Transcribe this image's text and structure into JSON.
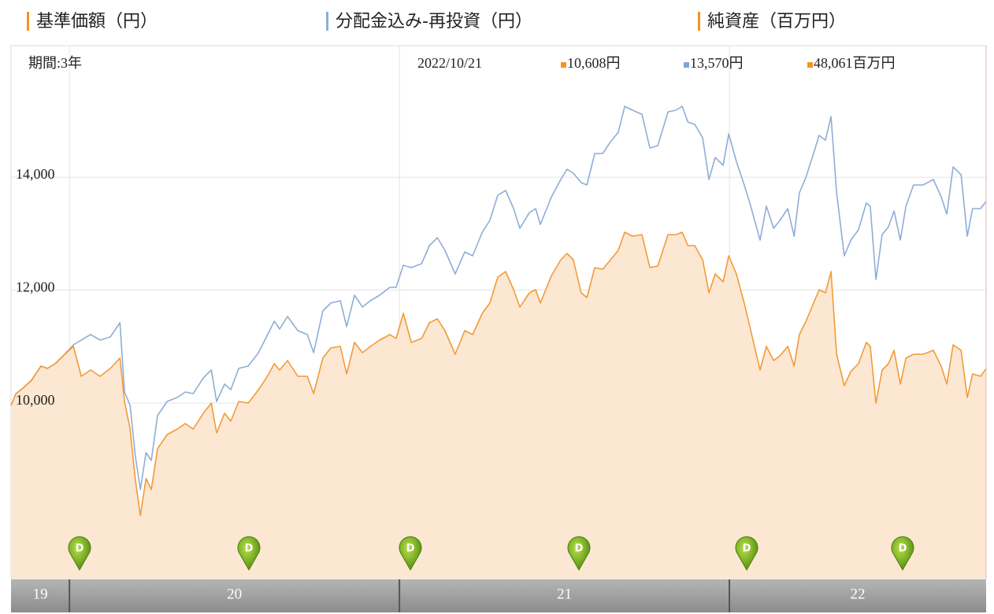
{
  "chart_data": {
    "type": "line",
    "period_label": "期間:3年",
    "date": "2022/10/21",
    "readout": [
      {
        "color": "#f7931e",
        "value": 10608,
        "label": "10,608円"
      },
      {
        "color": "#7fa6d6",
        "value": 13570,
        "label": "13,570円"
      },
      {
        "color": "#f7931e",
        "value": 48061,
        "label": "48,061百万円"
      }
    ],
    "net_assets": {
      "name": "純資産（百万円）",
      "color": "#f7931e"
    },
    "dividend_marker_label": "D",
    "xlim": [
      19.823,
      22.778
    ],
    "xticks": [
      19,
      20,
      21,
      22
    ],
    "ylim": [
      6890,
      16330
    ],
    "yticks": [
      {
        "value": 10000,
        "label": "10,000"
      },
      {
        "value": 12000,
        "label": "12,000"
      },
      {
        "value": 14000,
        "label": "14,000"
      }
    ],
    "grid": true,
    "x": [
      19.823,
      19.838,
      19.862,
      19.885,
      19.914,
      19.933,
      19.957,
      19.981,
      20.012,
      20.036,
      20.064,
      20.093,
      20.124,
      20.153,
      20.167,
      20.184,
      20.2,
      20.215,
      20.232,
      20.248,
      20.267,
      20.296,
      20.327,
      20.351,
      20.375,
      20.406,
      20.43,
      20.446,
      20.47,
      20.489,
      20.513,
      20.542,
      20.573,
      20.597,
      20.621,
      20.637,
      20.661,
      20.692,
      20.721,
      20.74,
      20.768,
      20.792,
      20.821,
      20.84,
      20.864,
      20.888,
      20.912,
      20.94,
      20.971,
      20.99,
      21.012,
      21.036,
      21.067,
      21.091,
      21.115,
      21.138,
      21.169,
      21.198,
      21.222,
      21.251,
      21.274,
      21.298,
      21.322,
      21.346,
      21.365,
      21.394,
      21.413,
      21.427,
      21.461,
      21.489,
      21.508,
      21.527,
      21.551,
      21.568,
      21.592,
      21.616,
      21.64,
      21.663,
      21.683,
      21.706,
      21.735,
      21.759,
      21.783,
      21.814,
      21.838,
      21.857,
      21.874,
      21.895,
      21.919,
      21.938,
      21.957,
      21.981,
      21.998,
      22.021,
      22.045,
      22.062,
      22.093,
      22.112,
      22.134,
      22.153,
      22.177,
      22.196,
      22.212,
      22.232,
      22.255,
      22.272,
      22.291,
      22.308,
      22.325,
      22.348,
      22.368,
      22.391,
      22.415,
      22.427,
      22.444,
      22.463,
      22.482,
      22.499,
      22.518,
      22.535,
      22.558,
      22.587,
      22.618,
      22.642,
      22.659,
      22.678,
      22.702,
      22.721,
      22.737,
      22.761,
      22.778
    ],
    "series": [
      {
        "name": "基準価額（円）",
        "color": "#f29b38",
        "fill": "#fbe7d2",
        "values": [
          9958,
          10167,
          10279,
          10404,
          10655,
          10613,
          10697,
          10836,
          11004,
          10474,
          10585,
          10474,
          10613,
          10795,
          10028,
          9540,
          8634,
          8007,
          8662,
          8467,
          9191,
          9442,
          9540,
          9637,
          9540,
          9819,
          10000,
          9470,
          9819,
          9679,
          10028,
          10000,
          10237,
          10446,
          10697,
          10585,
          10753,
          10474,
          10474,
          10167,
          10795,
          10976,
          11004,
          10516,
          11073,
          10892,
          11004,
          11115,
          11213,
          11143,
          11589,
          11073,
          11143,
          11422,
          11492,
          11282,
          10864,
          11282,
          11213,
          11589,
          11770,
          12230,
          12328,
          12007,
          11700,
          11952,
          12007,
          11770,
          12258,
          12537,
          12649,
          12537,
          11952,
          11868,
          12398,
          12370,
          12537,
          12704,
          13025,
          12955,
          12983,
          12398,
          12426,
          12983,
          12983,
          13025,
          12788,
          12788,
          12537,
          11952,
          12286,
          12147,
          12607,
          12286,
          11770,
          11352,
          10585,
          11004,
          10753,
          10836,
          11004,
          10655,
          11213,
          11450,
          11770,
          12007,
          11952,
          12328,
          10864,
          10307,
          10558,
          10697,
          11073,
          11004,
          10000,
          10585,
          10697,
          10934,
          10335,
          10795,
          10864,
          10864,
          10934,
          10655,
          10335,
          11032,
          10934,
          10097,
          10516,
          10474,
          10608
        ]
      },
      {
        "name": "分配金込み-再投資（円）",
        "color": "#8eaed6",
        "values": [
          9958,
          10167,
          10279,
          10404,
          10655,
          10613,
          10697,
          10836,
          11032,
          11115,
          11213,
          11115,
          11171,
          11422,
          10195,
          9958,
          9052,
          8467,
          9121,
          8982,
          9777,
          10028,
          10098,
          10195,
          10167,
          10446,
          10585,
          10028,
          10335,
          10237,
          10613,
          10655,
          10892,
          11171,
          11450,
          11310,
          11533,
          11282,
          11213,
          10892,
          11631,
          11770,
          11812,
          11352,
          11910,
          11700,
          11812,
          11910,
          12049,
          12049,
          12440,
          12398,
          12467,
          12788,
          12927,
          12704,
          12286,
          12676,
          12607,
          13025,
          13234,
          13680,
          13764,
          13443,
          13095,
          13373,
          13443,
          13164,
          13652,
          13959,
          14141,
          14071,
          13904,
          13862,
          14419,
          14419,
          14628,
          14795,
          15255,
          15186,
          15116,
          14516,
          14558,
          15158,
          15186,
          15255,
          14977,
          14935,
          14698,
          13959,
          14349,
          14210,
          14767,
          14280,
          13862,
          13541,
          12886,
          13485,
          13095,
          13234,
          13443,
          12955,
          13722,
          14001,
          14419,
          14740,
          14656,
          15074,
          13722,
          12607,
          12886,
          13067,
          13541,
          13485,
          12188,
          12983,
          13122,
          13401,
          12886,
          13485,
          13862,
          13862,
          13959,
          13652,
          13345,
          14182,
          14043,
          12955,
          13443,
          13443,
          13570
        ]
      }
    ]
  }
}
